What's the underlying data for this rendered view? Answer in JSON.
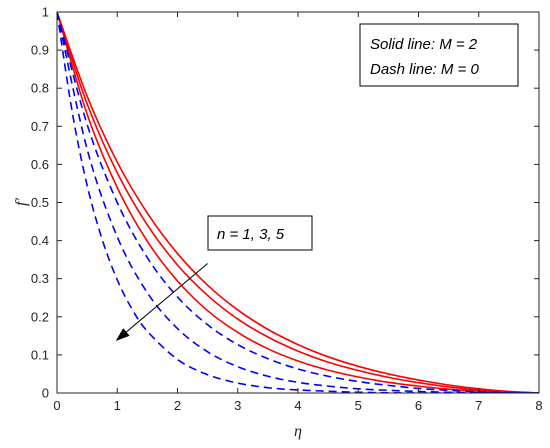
{
  "chart_data": {
    "type": "line",
    "title": "",
    "xlabel": "η",
    "ylabel": "f'",
    "xlim": [
      0,
      8
    ],
    "ylim": [
      0,
      1
    ],
    "x_ticks": [
      "0",
      "1",
      "2",
      "3",
      "4",
      "5",
      "6",
      "7",
      "8"
    ],
    "y_ticks": [
      "0",
      "0.1",
      "0.2",
      "0.3",
      "0.4",
      "0.5",
      "0.6",
      "0.7",
      "0.8",
      "0.9",
      "1"
    ],
    "grid": false,
    "legend_box": {
      "line1": "Solid line: M = 2",
      "line2": "Dash line: M = 0",
      "placement": "top-right"
    },
    "annotation": {
      "text": "n = 1, 3, 5",
      "arrow_from": [
        2.5,
        0.34
      ],
      "arrow_to": [
        1.0,
        0.14
      ]
    },
    "colors": {
      "solid": "#ff0000",
      "dash": "#0000ff"
    },
    "series": [
      {
        "style": "solid",
        "color": "#ff0000",
        "x": [
          0,
          0.5,
          1,
          1.5,
          2,
          2.5,
          3,
          3.5,
          4,
          4.5,
          5,
          5.5,
          6,
          6.5,
          7,
          7.5,
          8
        ],
        "values": [
          1.0,
          0.779,
          0.606,
          0.472,
          0.366,
          0.283,
          0.218,
          0.167,
          0.127,
          0.095,
          0.07,
          0.05,
          0.034,
          0.021,
          0.011,
          0.004,
          0.0
        ]
      },
      {
        "style": "solid",
        "color": "#ff0000",
        "x": [
          0,
          0.5,
          1,
          1.5,
          2,
          2.5,
          3,
          3.5,
          4,
          4.5,
          5,
          5.5,
          6,
          6.5,
          7,
          7.5,
          8
        ],
        "values": [
          1.0,
          0.759,
          0.578,
          0.441,
          0.336,
          0.256,
          0.194,
          0.147,
          0.11,
          0.081,
          0.059,
          0.041,
          0.027,
          0.016,
          0.008,
          0.003,
          0.0
        ]
      },
      {
        "style": "solid",
        "color": "#ff0000",
        "x": [
          0,
          0.5,
          1,
          1.5,
          2,
          2.5,
          3,
          3.5,
          4,
          4.5,
          5,
          5.5,
          6,
          6.5,
          7,
          7.5,
          8
        ],
        "values": [
          1.0,
          0.732,
          0.539,
          0.398,
          0.294,
          0.216,
          0.159,
          0.116,
          0.084,
          0.06,
          0.042,
          0.028,
          0.018,
          0.01,
          0.005,
          0.002,
          0.0
        ]
      },
      {
        "style": "dash",
        "color": "#0000ff",
        "x": [
          0,
          0.5,
          1,
          1.5,
          2,
          2.5,
          3,
          3.5,
          4,
          4.5,
          5,
          5.5,
          6,
          6.5,
          7,
          7.5,
          8
        ],
        "values": [
          1.0,
          0.705,
          0.5,
          0.355,
          0.252,
          0.179,
          0.127,
          0.09,
          0.063,
          0.044,
          0.03,
          0.02,
          0.012,
          0.007,
          0.003,
          0.001,
          0.0
        ]
      },
      {
        "style": "dash",
        "color": "#0000ff",
        "x": [
          0,
          0.5,
          1,
          1.5,
          2,
          2.5,
          3,
          3.5,
          4,
          4.5,
          5,
          5.5,
          6,
          6.5,
          7,
          7.5,
          8
        ],
        "values": [
          1.0,
          0.64,
          0.41,
          0.263,
          0.169,
          0.108,
          0.069,
          0.044,
          0.028,
          0.018,
          0.011,
          0.007,
          0.004,
          0.002,
          0.001,
          0.0,
          0.0
        ]
      },
      {
        "style": "dash",
        "color": "#0000ff",
        "x": [
          0,
          0.25,
          0.5,
          0.75,
          1,
          1.25,
          1.5,
          2,
          2.5,
          3,
          3.5,
          4,
          5,
          6,
          8
        ],
        "values": [
          1.0,
          0.74,
          0.545,
          0.403,
          0.297,
          0.219,
          0.162,
          0.088,
          0.048,
          0.026,
          0.014,
          0.008,
          0.002,
          0.0,
          0.0
        ]
      }
    ]
  }
}
